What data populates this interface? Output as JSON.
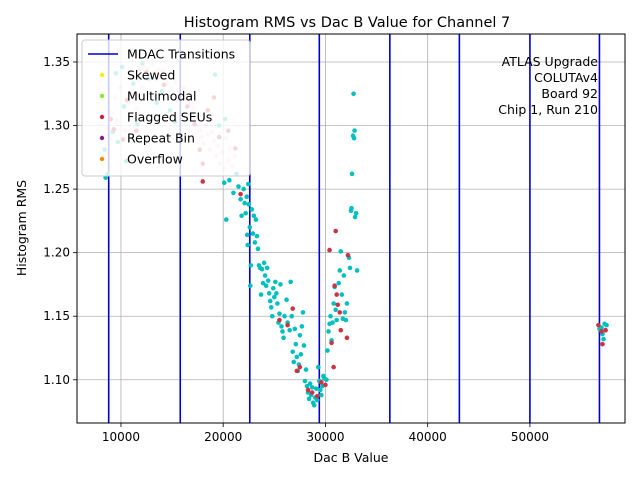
{
  "chart_data": {
    "type": "scatter",
    "title": "Histogram RMS vs Dac B Value for Channel 7",
    "xlabel": "Dac B Value",
    "ylabel": "Histogram RMS",
    "xlim": [
      5700,
      59300
    ],
    "ylim": [
      1.066,
      1.372
    ],
    "xticks": [
      10000,
      20000,
      30000,
      40000,
      50000
    ],
    "xtick_labels": [
      "10000",
      "20000",
      "30000",
      "40000",
      "50000"
    ],
    "yticks": [
      1.1,
      1.15,
      1.2,
      1.25,
      1.3,
      1.35
    ],
    "ytick_labels": [
      "1.10",
      "1.15",
      "1.20",
      "1.25",
      "1.30",
      "1.35"
    ],
    "grid": true,
    "legend_position": "upper-left",
    "legend": [
      {
        "label": "MDAC Transitions",
        "kind": "line",
        "color": "#0000cc"
      },
      {
        "label": "Skewed",
        "kind": "dot",
        "color": "#ffee00"
      },
      {
        "label": "Multimodal",
        "kind": "dot",
        "color": "#88ee22"
      },
      {
        "label": "Flagged SEUs",
        "kind": "dot",
        "color": "#cc2244"
      },
      {
        "label": "Repeat Bin",
        "kind": "dot",
        "color": "#8a1c8a"
      },
      {
        "label": "Overflow",
        "kind": "dot",
        "color": "#ff8800"
      }
    ],
    "annotation": [
      "ATLAS Upgrade",
      "COLUTAv4",
      "Board 92",
      "Chip 1, Run 210"
    ],
    "mdac_transitions": [
      8800,
      15800,
      22600,
      29400,
      36300,
      43100,
      50000,
      56800
    ],
    "colors": {
      "normal": "#00bfbf",
      "flagged": "#cc3344",
      "line": "#0000cc"
    },
    "normal_points": [
      [
        8400,
        1.281
      ],
      [
        8500,
        1.259
      ],
      [
        8700,
        1.262
      ],
      [
        9200,
        1.295
      ],
      [
        9500,
        1.341
      ],
      [
        9700,
        1.287
      ],
      [
        10100,
        1.346
      ],
      [
        10300,
        1.315
      ],
      [
        10500,
        1.272
      ],
      [
        11200,
        1.333
      ],
      [
        11600,
        1.301
      ],
      [
        12100,
        1.349
      ],
      [
        12700,
        1.337
      ],
      [
        13500,
        1.318
      ],
      [
        14000,
        1.327
      ],
      [
        14800,
        1.312
      ],
      [
        15300,
        1.303
      ],
      [
        19200,
        1.34
      ],
      [
        19600,
        1.3
      ],
      [
        20200,
        1.305
      ],
      [
        20100,
        1.255
      ],
      [
        20300,
        1.226
      ],
      [
        20600,
        1.257
      ],
      [
        21000,
        1.247
      ],
      [
        21300,
        1.262
      ],
      [
        21500,
        1.252
      ],
      [
        21700,
        1.242
      ],
      [
        21800,
        1.229
      ],
      [
        22000,
        1.25
      ],
      [
        22100,
        1.239
      ],
      [
        22200,
        1.231
      ],
      [
        22300,
        1.244
      ],
      [
        22350,
        1.214
      ],
      [
        22400,
        1.206
      ],
      [
        22450,
        1.254
      ],
      [
        22500,
        1.238
      ],
      [
        22600,
        1.22
      ],
      [
        22650,
        1.174
      ],
      [
        22700,
        1.19
      ],
      [
        22800,
        1.234
      ],
      [
        22900,
        1.215
      ],
      [
        23000,
        1.229
      ],
      [
        23100,
        1.208
      ],
      [
        23200,
        1.226
      ],
      [
        23300,
        1.213
      ],
      [
        23400,
        1.203
      ],
      [
        23500,
        1.19
      ],
      [
        23600,
        1.188
      ],
      [
        23700,
        1.167
      ],
      [
        23800,
        1.187
      ],
      [
        23900,
        1.176
      ],
      [
        24000,
        1.192
      ],
      [
        24100,
        1.182
      ],
      [
        24200,
        1.174
      ],
      [
        24300,
        1.188
      ],
      [
        24400,
        1.178
      ],
      [
        24500,
        1.168
      ],
      [
        24600,
        1.162
      ],
      [
        24700,
        1.157
      ],
      [
        24800,
        1.15
      ],
      [
        24900,
        1.172
      ],
      [
        25000,
        1.165
      ],
      [
        25100,
        1.177
      ],
      [
        25200,
        1.168
      ],
      [
        25300,
        1.16
      ],
      [
        25400,
        1.145
      ],
      [
        25500,
        1.152
      ],
      [
        25600,
        1.175
      ],
      [
        25700,
        1.142
      ],
      [
        25800,
        1.138
      ],
      [
        25900,
        1.133
      ],
      [
        26000,
        1.15
      ],
      [
        26200,
        1.163
      ],
      [
        26300,
        1.145
      ],
      [
        26500,
        1.139
      ],
      [
        26600,
        1.177
      ],
      [
        26700,
        1.15
      ],
      [
        26800,
        1.122
      ],
      [
        26900,
        1.114
      ],
      [
        27000,
        1.14
      ],
      [
        27100,
        1.128
      ],
      [
        27200,
        1.118
      ],
      [
        27300,
        1.107
      ],
      [
        27400,
        1.112
      ],
      [
        27500,
        1.135
      ],
      [
        27600,
        1.12
      ],
      [
        27700,
        1.142
      ],
      [
        27800,
        1.153
      ],
      [
        27900,
        1.127
      ],
      [
        28000,
        1.099
      ],
      [
        28100,
        1.108
      ],
      [
        28200,
        1.095
      ],
      [
        28300,
        1.09
      ],
      [
        28400,
        1.085
      ],
      [
        28500,
        1.097
      ],
      [
        28600,
        1.088
      ],
      [
        28700,
        1.094
      ],
      [
        28800,
        1.082
      ],
      [
        28900,
        1.08
      ],
      [
        29000,
        1.086
      ],
      [
        29100,
        1.093
      ],
      [
        29200,
        1.084
      ],
      [
        29300,
        1.11
      ],
      [
        29400,
        1.099
      ],
      [
        29500,
        1.092
      ],
      [
        29600,
        1.088
      ],
      [
        29700,
        1.095
      ],
      [
        29800,
        1.103
      ],
      [
        29900,
        1.101
      ],
      [
        30100,
        1.1
      ],
      [
        30200,
        1.123
      ],
      [
        30300,
        1.138
      ],
      [
        30400,
        1.144
      ],
      [
        30500,
        1.15
      ],
      [
        30600,
        1.131
      ],
      [
        30700,
        1.145
      ],
      [
        30800,
        1.16
      ],
      [
        30900,
        1.173
      ],
      [
        31000,
        1.155
      ],
      [
        31100,
        1.147
      ],
      [
        31300,
        1.176
      ],
      [
        31400,
        1.186
      ],
      [
        31500,
        1.201
      ],
      [
        31600,
        1.167
      ],
      [
        31700,
        1.148
      ],
      [
        31800,
        1.182
      ],
      [
        31900,
        1.153
      ],
      [
        32000,
        1.147
      ],
      [
        32100,
        1.16
      ],
      [
        32300,
        1.196
      ],
      [
        32400,
        1.188
      ],
      [
        32500,
        1.233
      ],
      [
        32550,
        1.235
      ],
      [
        32600,
        1.262
      ],
      [
        32700,
        1.292
      ],
      [
        32750,
        1.325
      ],
      [
        32800,
        1.29
      ],
      [
        32850,
        1.296
      ],
      [
        32900,
        1.228
      ],
      [
        33000,
        1.231
      ],
      [
        33100,
        1.186
      ],
      [
        56800,
        1.14
      ],
      [
        57000,
        1.141
      ],
      [
        57100,
        1.136
      ],
      [
        57200,
        1.132
      ],
      [
        57300,
        1.144
      ],
      [
        57400,
        1.139
      ],
      [
        57500,
        1.143
      ]
    ],
    "flagged_points": [
      [
        9000,
        1.305
      ],
      [
        9300,
        1.297
      ],
      [
        10200,
        1.289
      ],
      [
        10600,
        1.32
      ],
      [
        11500,
        1.296
      ],
      [
        12500,
        1.342
      ],
      [
        14200,
        1.332
      ],
      [
        16500,
        1.315
      ],
      [
        17200,
        1.301
      ],
      [
        17700,
        1.281
      ],
      [
        18000,
        1.27
      ],
      [
        18000,
        1.256
      ],
      [
        18500,
        1.312
      ],
      [
        19100,
        1.322
      ],
      [
        19600,
        1.291
      ],
      [
        20500,
        1.296
      ],
      [
        21200,
        1.282
      ],
      [
        21700,
        1.246
      ],
      [
        25500,
        1.147
      ],
      [
        26300,
        1.143
      ],
      [
        26800,
        1.156
      ],
      [
        27200,
        1.107
      ],
      [
        27500,
        1.11
      ],
      [
        28300,
        1.092
      ],
      [
        28700,
        1.09
      ],
      [
        29200,
        1.087
      ],
      [
        29600,
        1.098
      ],
      [
        30000,
        1.096
      ],
      [
        30400,
        1.202
      ],
      [
        30600,
        1.129
      ],
      [
        30800,
        1.11
      ],
      [
        30900,
        1.174
      ],
      [
        31000,
        1.217
      ],
      [
        31100,
        1.167
      ],
      [
        31200,
        1.159
      ],
      [
        31400,
        1.153
      ],
      [
        31500,
        1.139
      ],
      [
        32100,
        1.133
      ],
      [
        32200,
        1.198
      ],
      [
        56700,
        1.143
      ],
      [
        57000,
        1.138
      ],
      [
        57100,
        1.128
      ],
      [
        57400,
        1.139
      ]
    ],
    "faint_points": [
      [
        8300,
        1.276
      ],
      [
        8600,
        1.298
      ],
      [
        9100,
        1.31
      ],
      [
        9400,
        1.322
      ],
      [
        9600,
        1.304
      ],
      [
        9900,
        1.33
      ],
      [
        10400,
        1.296
      ],
      [
        10700,
        1.318
      ],
      [
        10900,
        1.308
      ],
      [
        11100,
        1.339
      ],
      [
        11300,
        1.326
      ],
      [
        11500,
        1.313
      ],
      [
        11700,
        1.336
      ],
      [
        11900,
        1.344
      ],
      [
        12100,
        1.33
      ],
      [
        12300,
        1.346
      ],
      [
        12500,
        1.337
      ],
      [
        12700,
        1.345
      ],
      [
        12900,
        1.34
      ],
      [
        13100,
        1.348
      ],
      [
        13300,
        1.342
      ],
      [
        13500,
        1.336
      ],
      [
        13700,
        1.344
      ],
      [
        13900,
        1.339
      ],
      [
        14100,
        1.343
      ],
      [
        14300,
        1.337
      ],
      [
        14500,
        1.333
      ],
      [
        14700,
        1.34
      ],
      [
        14900,
        1.33
      ],
      [
        15100,
        1.326
      ],
      [
        15300,
        1.334
      ],
      [
        15500,
        1.32
      ],
      [
        15700,
        1.328
      ],
      [
        16100,
        1.33
      ],
      [
        16300,
        1.322
      ],
      [
        16500,
        1.326
      ],
      [
        16700,
        1.318
      ],
      [
        16900,
        1.31
      ],
      [
        17100,
        1.314
      ],
      [
        17300,
        1.306
      ],
      [
        17500,
        1.3
      ],
      [
        17700,
        1.296
      ],
      [
        17900,
        1.291
      ],
      [
        18100,
        1.286
      ],
      [
        18300,
        1.3
      ],
      [
        18500,
        1.293
      ],
      [
        18700,
        1.281
      ],
      [
        18900,
        1.295
      ],
      [
        19100,
        1.288
      ],
      [
        19300,
        1.276
      ],
      [
        19500,
        1.284
      ],
      [
        19700,
        1.27
      ],
      [
        19900,
        1.279
      ],
      [
        20100,
        1.266
      ],
      [
        20300,
        1.29
      ],
      [
        20500,
        1.272
      ],
      [
        20700,
        1.282
      ],
      [
        20900,
        1.268
      ],
      [
        21100,
        1.276
      ],
      [
        21300,
        1.262
      ]
    ]
  }
}
